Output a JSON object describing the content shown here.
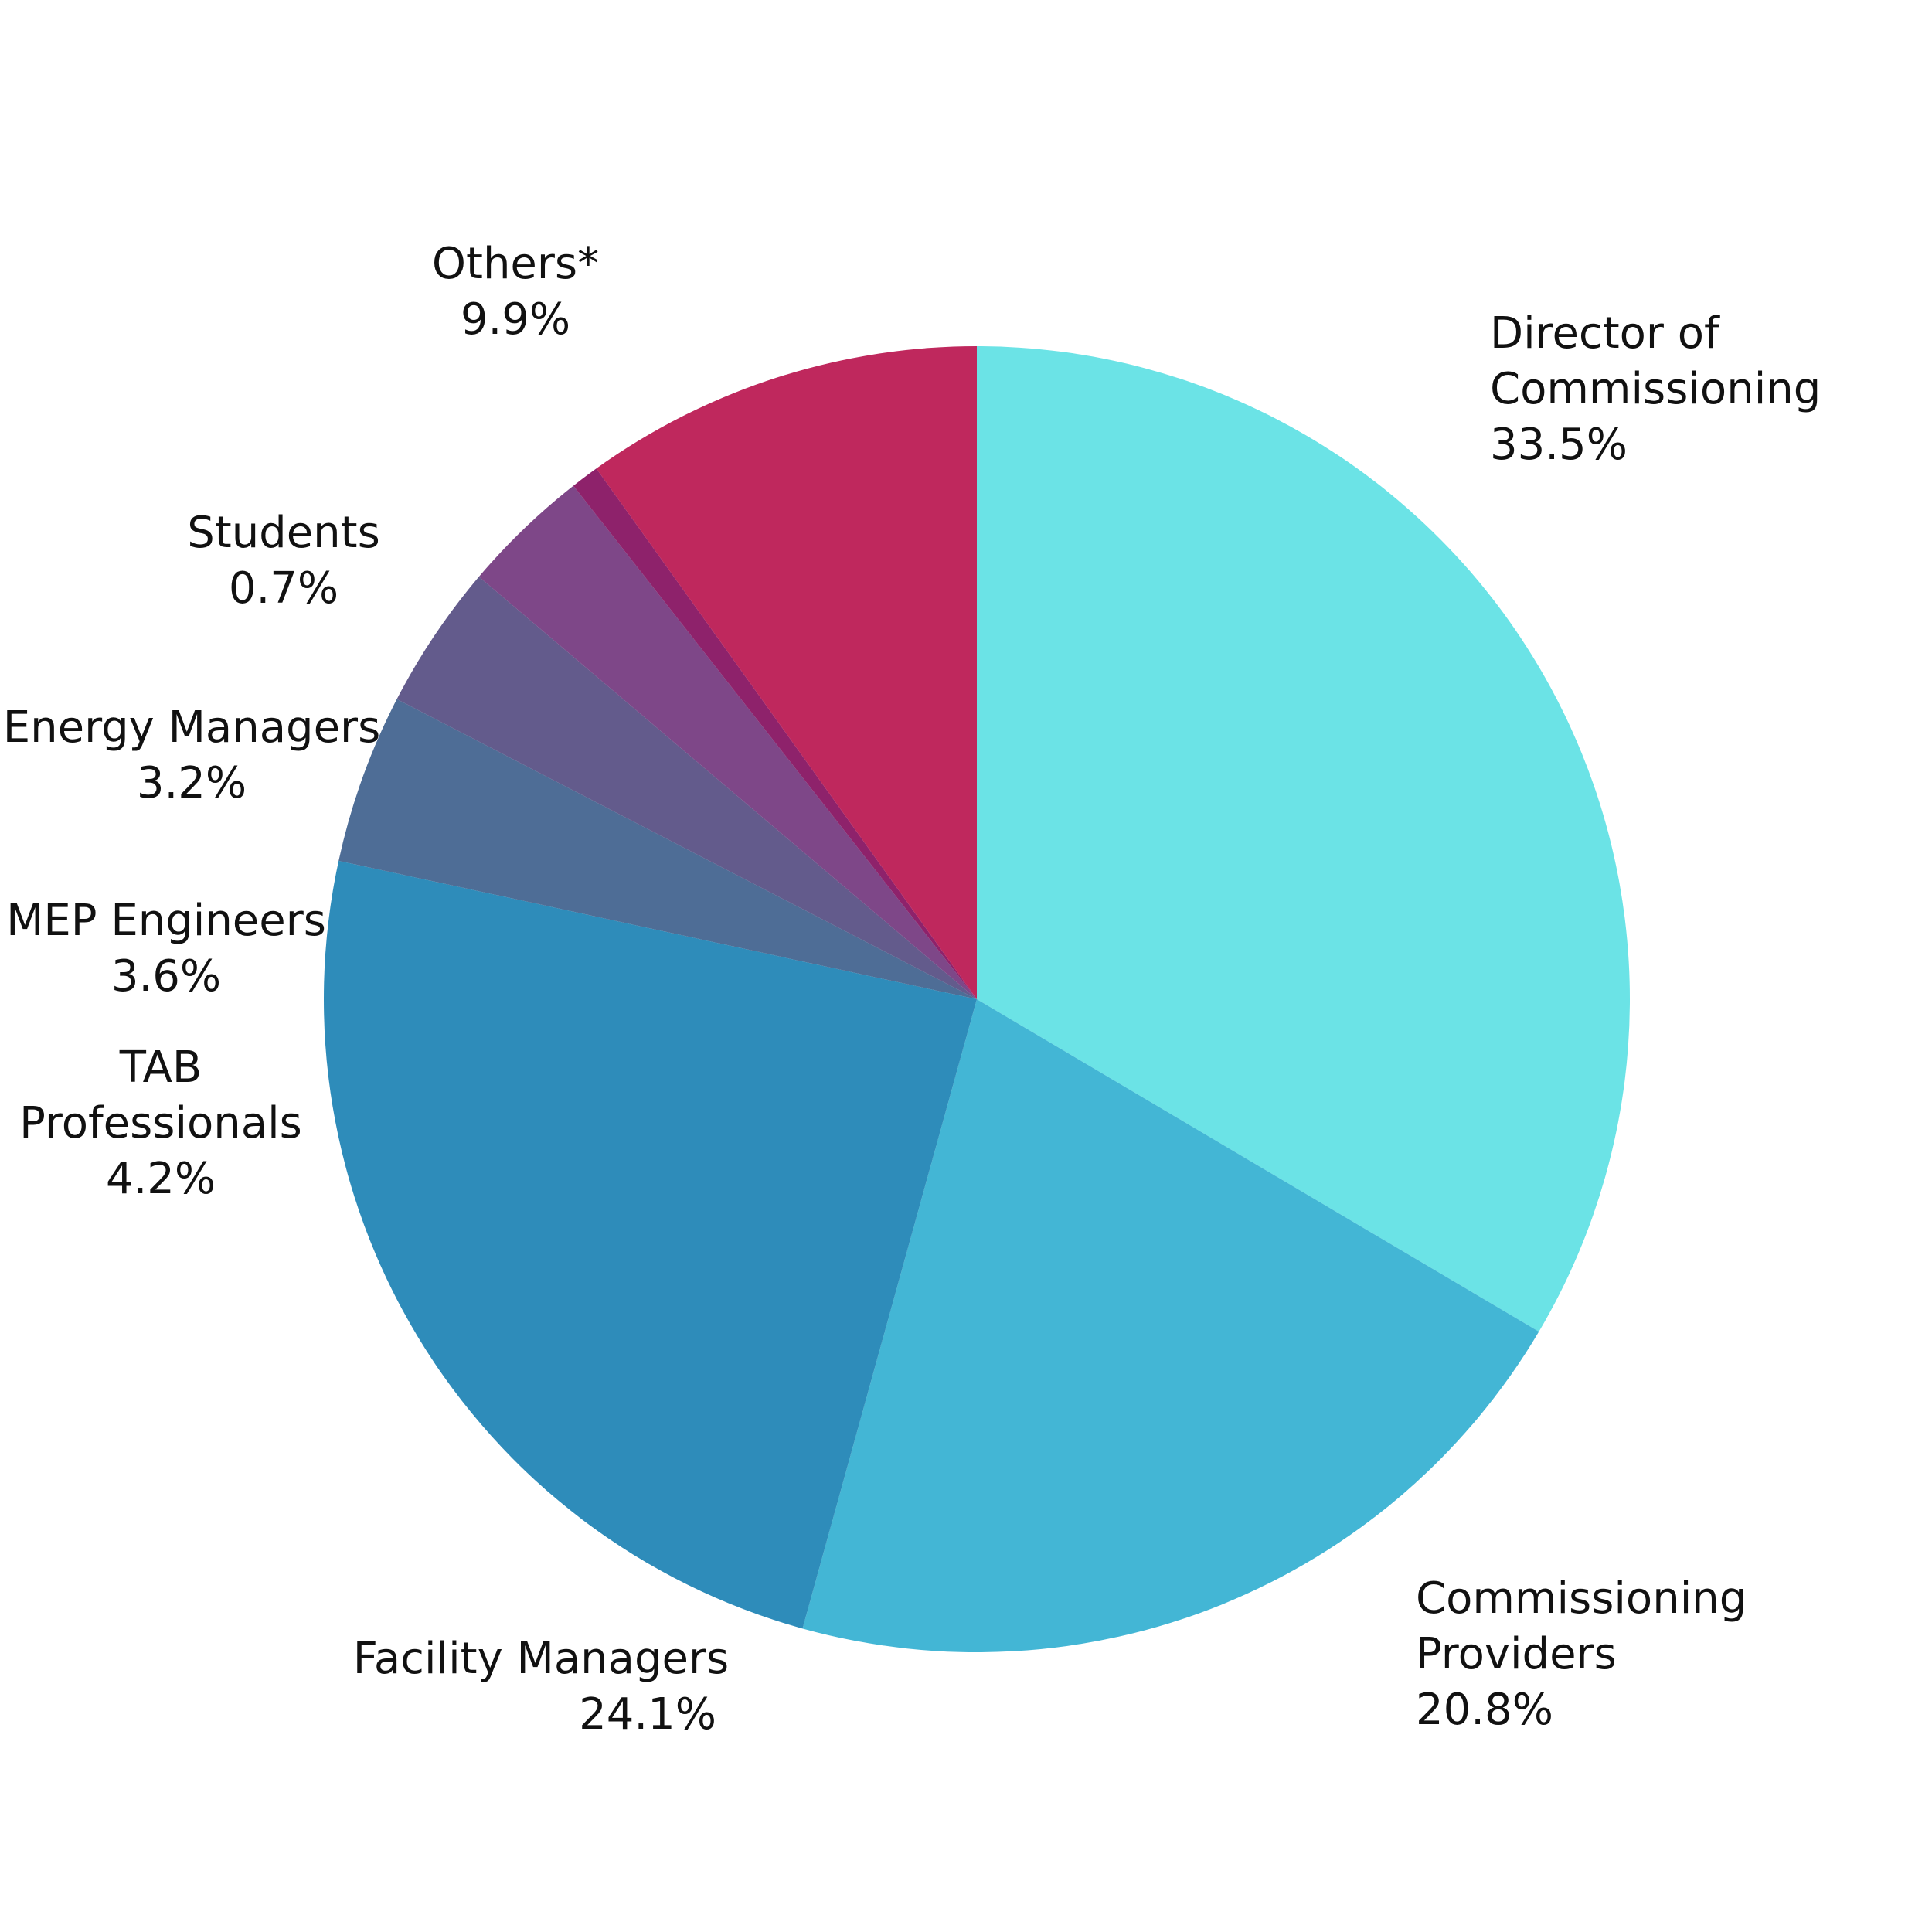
{
  "chart_data": {
    "type": "pie",
    "title": "",
    "legend": "none",
    "slices": [
      {
        "label_lines": [
          "Director of",
          "Commissioning"
        ],
        "label": "Director of Commissioning",
        "value_text": "33.5%",
        "value": 33.5,
        "color": "#6BE3E6"
      },
      {
        "label_lines": [
          "Commissioning",
          "Providers"
        ],
        "label": "Commissioning Providers",
        "value_text": "20.8%",
        "value": 20.8,
        "color": "#43B6D5"
      },
      {
        "label_lines": [
          "Facility Managers"
        ],
        "label": "Facility Managers",
        "value_text": "24.1%",
        "value": 24.1,
        "color": "#2E8CBA"
      },
      {
        "label_lines": [
          "TAB",
          "Professionals"
        ],
        "label": "TAB Professionals",
        "value_text": "4.2%",
        "value": 4.2,
        "color": "#4E6D96"
      },
      {
        "label_lines": [
          "MEP Engineers"
        ],
        "label": "MEP Engineers",
        "value_text": "3.6%",
        "value": 3.6,
        "color": "#635B8C"
      },
      {
        "label_lines": [
          "Energy Managers"
        ],
        "label": "Energy Managers",
        "value_text": "3.2%",
        "value": 3.2,
        "color": "#7E4788"
      },
      {
        "label_lines": [
          "Students"
        ],
        "label": "Students",
        "value_text": "0.7%",
        "value": 0.7,
        "color": "#8E226B"
      },
      {
        "label_lines": [
          "Others*"
        ],
        "label": "Others*",
        "value_text": "9.9%",
        "value": 9.9,
        "color": "#BF285D"
      }
    ]
  }
}
